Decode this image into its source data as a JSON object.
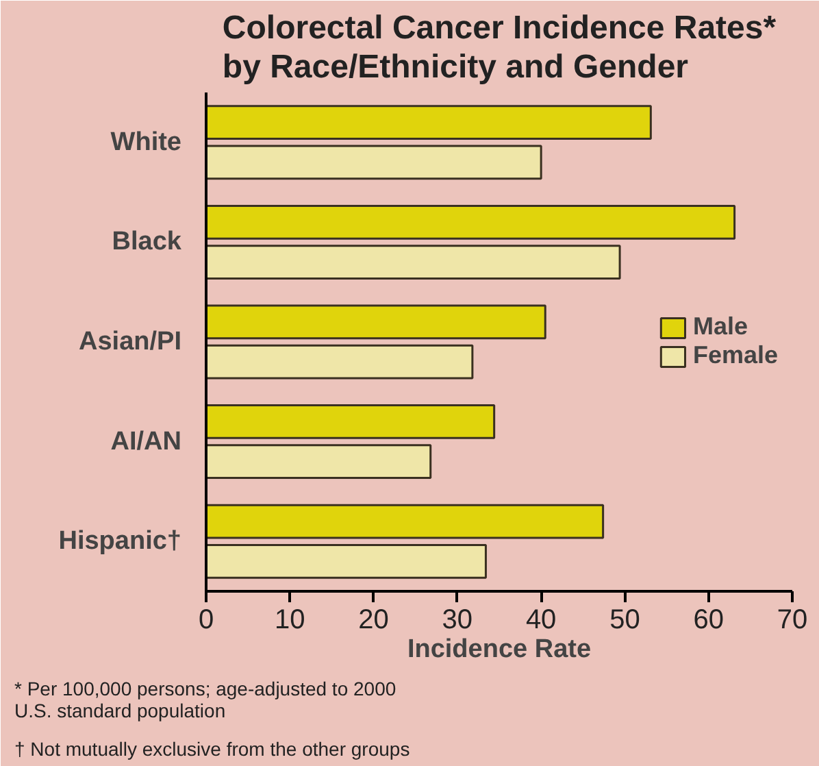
{
  "chart_data": {
    "type": "bar",
    "orientation": "horizontal",
    "title": "Colorectal Cancer Incidence Rates*\nby Race/Ethnicity and Gender",
    "xlabel": "Incidence Rate",
    "categories": [
      "White",
      "Black",
      "Asian/PI",
      "AI/AN",
      "Hispanic†"
    ],
    "series": [
      {
        "name": "Male",
        "color": "#e0d40c",
        "values": [
          53.1,
          63.1,
          40.5,
          34.4,
          47.4
        ]
      },
      {
        "name": "Female",
        "color": "#efe6a8",
        "values": [
          40.0,
          49.4,
          31.8,
          26.8,
          33.4
        ]
      }
    ],
    "xlim": [
      0,
      70
    ],
    "xticks": [
      0,
      10,
      20,
      30,
      40,
      50,
      60,
      70
    ],
    "grid": false,
    "legend": "right",
    "annotations": [
      "* Per 100,000 persons; age-adjusted to 2000\n   U.S. standard population",
      "† Not mutually exclusive from the other groups"
    ]
  }
}
